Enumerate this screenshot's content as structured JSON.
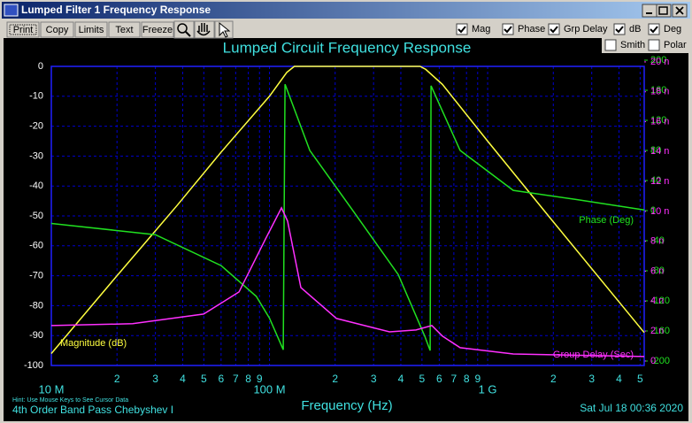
{
  "window": {
    "title": "Lumped Filter 1 Frequency Response"
  },
  "toolbar": {
    "buttons": [
      "Print",
      "Copy",
      "Limits",
      "Text",
      "Freeze"
    ],
    "checkboxes": [
      {
        "label": "Mag",
        "checked": true
      },
      {
        "label": "Phase",
        "checked": true
      },
      {
        "label": "Grp Delay",
        "checked": true
      },
      {
        "label": "dB",
        "checked": true
      },
      {
        "label": "Deg",
        "checked": true
      },
      {
        "label": "Smith",
        "checked": false
      },
      {
        "label": "Polar",
        "checked": false
      }
    ]
  },
  "chart_data": {
    "type": "line",
    "title": "Lumped Circuit Frequency Response",
    "x_label": "Frequency (Hz)",
    "subtitle": "4th Order Band Pass Chebyshev I",
    "hint": "Hint: Use Mouse Keys to See Cursor Data",
    "date": "Sat Jul 18 00:36 2020",
    "log_x": true,
    "grid": true,
    "xlim": [
      10000000,
      5220000000
    ],
    "xticks": [
      {
        "value": 10000000,
        "label": "10 M"
      },
      {
        "value": 20000000,
        "label": "2"
      },
      {
        "value": 30000000,
        "label": "3"
      },
      {
        "value": 40000000,
        "label": "4"
      },
      {
        "value": 50000000,
        "label": "5"
      },
      {
        "value": 60000000,
        "label": "6"
      },
      {
        "value": 70000000,
        "label": "7"
      },
      {
        "value": 80000000,
        "label": "8"
      },
      {
        "value": 90000000,
        "label": "9"
      },
      {
        "value": 100000000,
        "label": "100 M"
      },
      {
        "value": 200000000,
        "label": "2"
      },
      {
        "value": 300000000,
        "label": "3"
      },
      {
        "value": 400000000,
        "label": "4"
      },
      {
        "value": 500000000,
        "label": "5"
      },
      {
        "value": 600000000,
        "label": "6"
      },
      {
        "value": 700000000,
        "label": "7"
      },
      {
        "value": 800000000,
        "label": "8"
      },
      {
        "value": 900000000,
        "label": "9"
      },
      {
        "value": 1000000000,
        "label": "1 G"
      },
      {
        "value": 2000000000,
        "label": "2"
      },
      {
        "value": 3000000000,
        "label": "3"
      },
      {
        "value": 4000000000,
        "label": "4"
      },
      {
        "value": 5000000000,
        "label": "5"
      }
    ],
    "ylim": [
      -100,
      0
    ],
    "yticks": [
      0,
      -10,
      -20,
      -30,
      -40,
      -50,
      -60,
      -70,
      -80,
      -90,
      -100
    ],
    "y2lim": [
      -205.9,
      191.8
    ],
    "y2ticks": [
      200,
      160,
      120,
      80,
      40,
      0,
      -40,
      -80,
      -120,
      -160,
      -200
    ],
    "y3lim": [
      -0.3,
      19.7
    ],
    "y3ticks": [
      {
        "value": 20,
        "label": "20 n"
      },
      {
        "value": 18,
        "label": "18 n"
      },
      {
        "value": 16,
        "label": "16 n"
      },
      {
        "value": 14,
        "label": "14 n"
      },
      {
        "value": 12,
        "label": "12 n"
      },
      {
        "value": 10,
        "label": "10 n"
      },
      {
        "value": 8,
        "label": "8 n"
      },
      {
        "value": 6,
        "label": "6 n"
      },
      {
        "value": 4,
        "label": "4 n"
      },
      {
        "value": 2,
        "label": "2 n"
      },
      0
    ],
    "series": [
      {
        "name": "Magnitude (dB)",
        "color": "#ffff40",
        "axis": "y",
        "x": [
          10000000,
          20000000,
          37700000,
          60000000,
          100000000,
          120000000,
          130000000,
          490000000,
          520000000,
          620000000,
          1000000000,
          1900000000,
          5220000000
        ],
        "values": [
          -96,
          -70,
          -46.5,
          -28.7,
          -10,
          -2,
          0,
          0,
          -1,
          -6,
          -25,
          -50,
          -89
        ]
      },
      {
        "name": "Phase (Deg)",
        "color": "#20e020",
        "axis": "y2",
        "x": [
          10000000,
          30000000,
          60000000,
          87000000,
          100000000,
          115600000,
          117800000,
          153000000,
          244000000,
          389000000,
          515000000,
          545000000,
          550000000,
          748000000,
          1310000000,
          2520000000,
          5220000000
        ],
        "values": [
          -17,
          -32,
          -73,
          -114,
          -143,
          -185,
          168,
          80,
          -2,
          -85,
          -167,
          -186,
          166,
          80,
          27,
          15,
          1
        ]
      },
      {
        "name": "Group Delay (Sec)",
        "color": "#ff30ff",
        "axis": "y3",
        "x": [
          10000000,
          23600000,
          49900000,
          72500000,
          95900000,
          113500000,
          121100000,
          139300000,
          203000000,
          355000000,
          469000000,
          555000000,
          621000000,
          748000000,
          1310000000,
          5220000000
        ],
        "values": [
          2.37,
          2.49,
          3.14,
          4.62,
          8.17,
          10.24,
          9.35,
          4.91,
          2.84,
          1.95,
          2.07,
          2.37,
          1.66,
          0.89,
          0.47,
          0.3
        ]
      }
    ]
  }
}
